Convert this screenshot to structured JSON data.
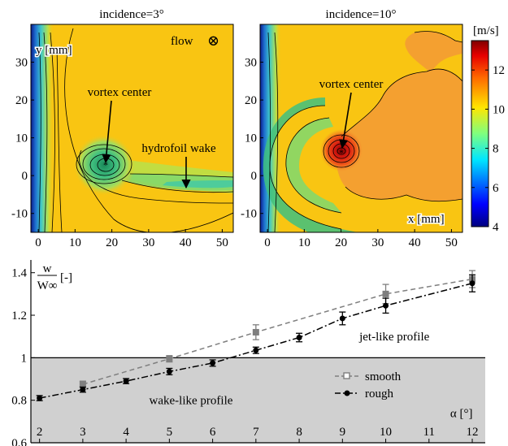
{
  "panels": {
    "left_title": "incidence=3°",
    "right_title": "incidence=10°",
    "left_ylabel": "y [mm]",
    "right_xlabel": "x [mm]",
    "flow_label": "flow",
    "flow_symbol": "⊗",
    "vortex_left": "vortex center",
    "vortex_right": "vortex center",
    "wake_label": "hydrofoil wake",
    "x_ticks": [
      "0",
      "10",
      "20",
      "30",
      "40",
      "50"
    ],
    "y_ticks": [
      "30",
      "20",
      "10",
      "0",
      "-10"
    ]
  },
  "colorbar": {
    "unit": "[m/s]",
    "ticks": [
      "12",
      "10",
      "8",
      "6",
      "4"
    ],
    "range": [
      4,
      13.5
    ],
    "colormap": "jet"
  },
  "colors": {
    "background_field": "#f9c512",
    "shaded_region": "#d0d0d0",
    "smooth": "#7f7f7f",
    "rough": "#000000"
  },
  "chart_data": [
    {
      "type": "heatmap",
      "title": "incidence=3°",
      "xlabel": "",
      "ylabel": "y [mm]",
      "xlim": [
        -2,
        53
      ],
      "ylim": [
        -15,
        40
      ],
      "annotations": [
        "flow",
        "vortex center",
        "hydrofoil wake"
      ]
    },
    {
      "type": "heatmap",
      "title": "incidence=10°",
      "xlabel": "x [mm]",
      "ylabel": "",
      "xlim": [
        -2,
        53
      ],
      "ylim": [
        -15,
        40
      ],
      "annotations": [
        "vortex center"
      ]
    },
    {
      "type": "line",
      "xlabel": "α [°]",
      "ylabel_num": "w",
      "ylabel_den": "W∞",
      "ylabel_unit": "[-]",
      "xlim": [
        1.8,
        12.3
      ],
      "ylim": [
        0.6,
        1.46
      ],
      "x_ticks": [
        "2",
        "3",
        "4",
        "5",
        "6",
        "7",
        "8",
        "9",
        "10",
        "11",
        "12"
      ],
      "y_ticks": [
        "1.4",
        "1.2",
        "1",
        "0.8",
        "0.6"
      ],
      "reference_line": 1,
      "regions": {
        "above": "jet-like profile",
        "below": "wake-like profile"
      },
      "legend": "bottom-right",
      "series": [
        {
          "name": "smooth",
          "x": [
            3,
            5,
            7,
            10,
            12
          ],
          "y": [
            0.875,
            0.995,
            1.12,
            1.3,
            1.37
          ],
          "err": [
            0.015,
            0.015,
            0.035,
            0.045,
            0.04
          ]
        },
        {
          "name": "rough",
          "x": [
            2,
            3,
            4,
            5,
            6,
            7,
            8,
            9,
            10,
            12
          ],
          "y": [
            0.81,
            0.85,
            0.89,
            0.935,
            0.975,
            1.035,
            1.095,
            1.185,
            1.245,
            1.35
          ],
          "err": [
            0.012,
            0.012,
            0.012,
            0.015,
            0.015,
            0.015,
            0.02,
            0.03,
            0.035,
            0.04
          ]
        }
      ]
    }
  ]
}
